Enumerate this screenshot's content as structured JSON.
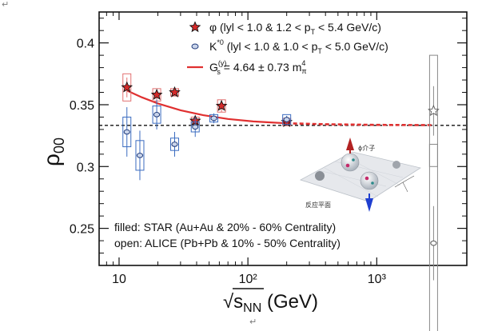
{
  "page": {
    "return_mark_top": "↵",
    "return_mark_bottom": "↵"
  },
  "chart_data": {
    "type": "scatter",
    "xscale": "log",
    "xlim": [
      7,
      5000
    ],
    "ylim": [
      0.22,
      0.425
    ],
    "xlabel": "√s_NN (GeV)",
    "ylabel": "ρ00",
    "x_ticks": [
      {
        "value": 10,
        "label": "10"
      },
      {
        "value": 100,
        "label": "10²"
      },
      {
        "value": 1000,
        "label": "10³"
      }
    ],
    "y_ticks": [
      {
        "value": 0.25,
        "label": "0.25"
      },
      {
        "value": 0.3,
        "label": "0.3"
      },
      {
        "value": 0.35,
        "label": "0.35"
      },
      {
        "value": 0.4,
        "label": "0.4"
      }
    ],
    "reference_line": 0.3333,
    "series": [
      {
        "name": "φ",
        "marker": "star",
        "filled": true,
        "color": "#d42a2a",
        "points": [
          {
            "x": 11.5,
            "y": 0.364,
            "err": 0.008,
            "sys": 0.011
          },
          {
            "x": 19.6,
            "y": 0.358,
            "err": 0.004,
            "sys": 0.005
          },
          {
            "x": 27,
            "y": 0.36,
            "err": 0.003,
            "sys": 0.003
          },
          {
            "x": 39,
            "y": 0.337,
            "err": 0.003,
            "sys": 0.003
          },
          {
            "x": 62.4,
            "y": 0.349,
            "err": 0.005,
            "sys": 0.005
          },
          {
            "x": 200,
            "y": 0.336,
            "err": 0.002,
            "sys": 0.003
          }
        ]
      },
      {
        "name": "K*0",
        "marker": "circle",
        "filled": true,
        "color": "#2f5aa8",
        "points": [
          {
            "x": 11.5,
            "y": 0.328,
            "err": 0.02,
            "sys": 0.012
          },
          {
            "x": 14.5,
            "y": 0.309,
            "err": 0.02,
            "sys": 0.012
          },
          {
            "x": 19.6,
            "y": 0.342,
            "err": 0.012,
            "sys": 0.007
          },
          {
            "x": 27,
            "y": 0.318,
            "err": 0.01,
            "sys": 0.005
          },
          {
            "x": 39,
            "y": 0.332,
            "err": 0.008,
            "sys": 0.004
          },
          {
            "x": 54.4,
            "y": 0.339,
            "err": 0.004,
            "sys": 0.003
          },
          {
            "x": 200,
            "y": 0.338,
            "err": 0.003,
            "sys": 0.004
          }
        ]
      },
      {
        "name": "φ ALICE",
        "marker": "star",
        "filled": false,
        "color": "#777777",
        "points": [
          {
            "x": 2760,
            "y": 0.345,
            "err": 0.02,
            "sys": 0.045
          }
        ]
      },
      {
        "name": "K*0 ALICE",
        "marker": "circle",
        "filled": false,
        "color": "#777777",
        "points": [
          {
            "x": 2760,
            "y": 0.238,
            "err": 0.03,
            "sys": 0.08
          }
        ]
      }
    ],
    "fit_curve": {
      "name": "G_s(y) fit",
      "color": "#e03030",
      "solid_points": [
        {
          "x": 11.5,
          "y": 0.3615
        },
        {
          "x": 15,
          "y": 0.356
        },
        {
          "x": 20,
          "y": 0.351
        },
        {
          "x": 30,
          "y": 0.3455
        },
        {
          "x": 45,
          "y": 0.3415
        },
        {
          "x": 70,
          "y": 0.3385
        },
        {
          "x": 110,
          "y": 0.3365
        },
        {
          "x": 160,
          "y": 0.3355
        },
        {
          "x": 200,
          "y": 0.335
        }
      ],
      "dashed_points": [
        {
          "x": 200,
          "y": 0.335
        },
        {
          "x": 400,
          "y": 0.3342
        },
        {
          "x": 1000,
          "y": 0.3337
        },
        {
          "x": 2760,
          "y": 0.3335
        }
      ]
    },
    "legend": {
      "placement": "top",
      "entries": [
        {
          "marker": "star",
          "symbol": "φ",
          "text": "(lyl < 1.0 & 1.2 < p",
          "sub": "T",
          "text2": " < 5.4 GeV/c)"
        },
        {
          "marker": "circle",
          "symbol": "K",
          "sup": "*0",
          "text": "(lyl < 1.0 & 1.0 < p",
          "sub": "T",
          "text2": " < 5.0 GeV/c)"
        },
        {
          "marker": "line",
          "symbol": "G",
          "sup": "(y)",
          "sub": "s",
          "text": "= 4.64 ± 0.73 m",
          "sup2": "4",
          "sub2": "π"
        }
      ]
    },
    "annotations": [
      "filled: STAR (Au+Au & 20% - 60% Centrality)",
      "open: ALICE (Pb+Pb & 10% - 50% Centrality)"
    ],
    "inset": {
      "meson_label": "ϕ介子",
      "plane_label": "反应平面"
    }
  }
}
